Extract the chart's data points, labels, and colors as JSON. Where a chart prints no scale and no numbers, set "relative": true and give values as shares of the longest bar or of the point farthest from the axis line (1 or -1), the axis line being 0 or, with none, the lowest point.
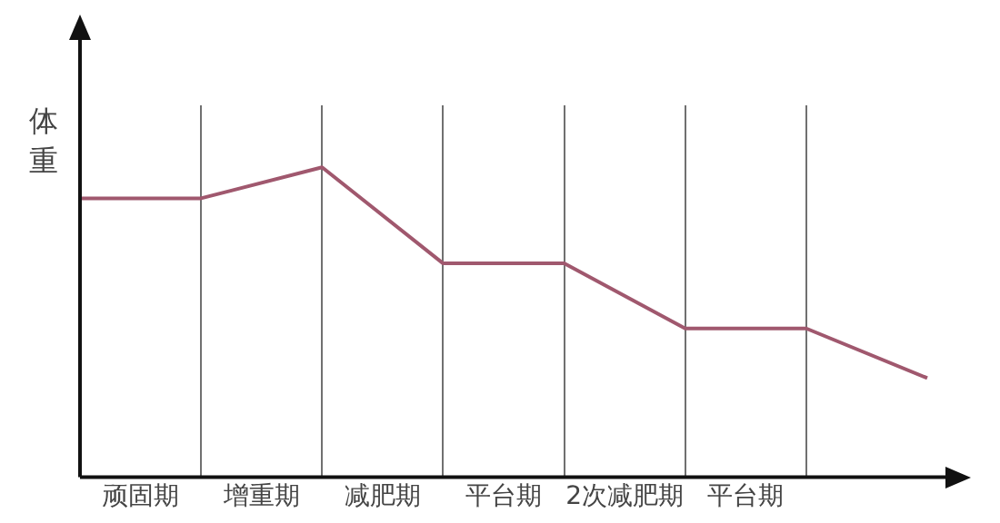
{
  "chart_data": {
    "type": "line",
    "relative": true,
    "ylabel": "体重",
    "categories": [
      null,
      null,
      null,
      null,
      null,
      null,
      null,
      null
    ],
    "annotations": [
      "顽固期",
      "增重期",
      "减肥期",
      "平台期",
      "2次减肥期",
      "平台期"
    ],
    "series": [
      {
        "color": "#a0586e",
        "values": [
          0.9,
          0.9,
          1,
          0.69,
          0.69,
          0.48,
          0.48,
          0.32
        ]
      }
    ],
    "grid": "x",
    "legend": false,
    "marker": "none",
    "line_style": "solid"
  }
}
